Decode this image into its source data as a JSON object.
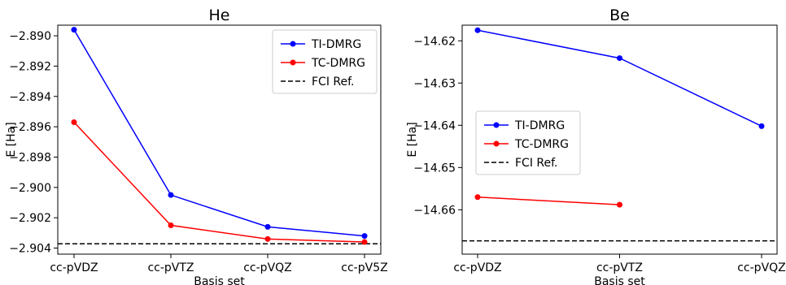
{
  "chart_data": [
    {
      "type": "line",
      "title": "He",
      "xlabel": "Basis set",
      "ylabel": "E [Ha]",
      "categories": [
        "cc-pVDZ",
        "cc-pVTZ",
        "cc-pVQZ",
        "cc-pV5Z"
      ],
      "ylim": [
        -2.9044,
        -2.8893
      ],
      "yticks": [
        -2.89,
        -2.892,
        -2.894,
        -2.896,
        -2.898,
        -2.9,
        -2.902,
        -2.904
      ],
      "ytick_labels": [
        "−2.890",
        "−2.892",
        "−2.894",
        "−2.896",
        "−2.898",
        "−2.900",
        "−2.902",
        "−2.904"
      ],
      "grid": false,
      "legend_position": "top-right",
      "series": [
        {
          "name": "TI-DMRG",
          "color": "#0000ff",
          "style": "solid",
          "marker": "circle",
          "values": [
            -2.8896,
            -2.9005,
            -2.9026,
            -2.9032
          ]
        },
        {
          "name": "TC-DMRG",
          "color": "#ff0000",
          "style": "solid",
          "marker": "circle",
          "values": [
            -2.8957,
            -2.9025,
            -2.9034,
            -2.9036
          ]
        }
      ],
      "reference": {
        "name": "FCI Ref.",
        "color": "#000000",
        "style": "dashed",
        "value": -2.90372
      }
    },
    {
      "type": "line",
      "title": "Be",
      "xlabel": "Basis set",
      "ylabel": "E [Ha]",
      "categories": [
        "cc-pVDZ",
        "cc-pVTZ",
        "cc-pVQZ"
      ],
      "ylim": [
        -14.6705,
        -14.6163
      ],
      "yticks": [
        -14.62,
        -14.63,
        -14.64,
        -14.65,
        -14.66
      ],
      "ytick_labels": [
        "−14.62",
        "−14.63",
        "−14.64",
        "−14.65",
        "−14.66"
      ],
      "grid": false,
      "legend_position": "center-left",
      "series": [
        {
          "name": "TI-DMRG",
          "color": "#0000ff",
          "style": "solid",
          "marker": "circle",
          "values": [
            -14.6175,
            -14.6241,
            -14.6402
          ]
        },
        {
          "name": "TC-DMRG",
          "color": "#ff0000",
          "style": "solid",
          "marker": "circle",
          "values": [
            -14.657,
            -14.6588,
            null
          ]
        }
      ],
      "reference": {
        "name": "FCI Ref.",
        "color": "#000000",
        "style": "dashed",
        "value": -14.66736
      }
    }
  ]
}
